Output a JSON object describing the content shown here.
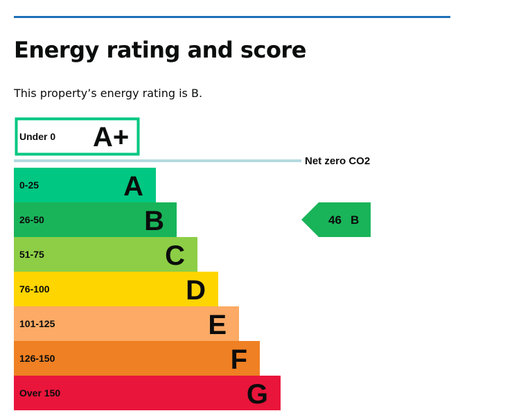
{
  "page": {
    "title": "Energy rating and score",
    "rating_sentence": "This property’s energy rating is B."
  },
  "colors": {
    "top_rule": "#1d70b8",
    "net_zero_line": "#b4dae0",
    "a_plus_border": "#00c781",
    "pointer": "#19b459"
  },
  "chart_data": {
    "type": "bar",
    "title": "",
    "a_plus_band": {
      "range": "Under 0",
      "letter": "A+"
    },
    "net_zero_label": "Net zero CO2",
    "bands": [
      {
        "range": "0-25",
        "letter": "A",
        "color": "#00c781",
        "level": 1
      },
      {
        "range": "26-50",
        "letter": "B",
        "color": "#19b459",
        "level": 2
      },
      {
        "range": "51-75",
        "letter": "C",
        "color": "#8dce46",
        "level": 3
      },
      {
        "range": "76-100",
        "letter": "D",
        "color": "#ffd500",
        "level": 4
      },
      {
        "range": "101-125",
        "letter": "E",
        "color": "#fcaa65",
        "level": 5
      },
      {
        "range": "126-150",
        "letter": "F",
        "color": "#ef8023",
        "level": 6
      },
      {
        "range": "Over 150",
        "letter": "G",
        "color": "#e9153b",
        "level": 7
      }
    ],
    "current": {
      "score": 46,
      "score_label": "46",
      "letter": "B",
      "band_index": 1
    }
  }
}
